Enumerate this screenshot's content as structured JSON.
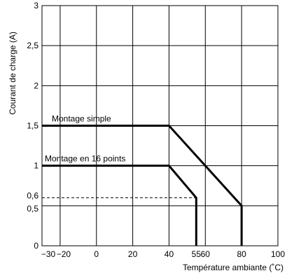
{
  "chart_data": {
    "type": "line",
    "xlabel": "Température ambiante (˚C)",
    "ylabel": "Courant de charge (A)",
    "xlim": [
      -30,
      100
    ],
    "ylim": [
      0,
      3
    ],
    "x_ticks": [
      -30,
      -20,
      0,
      20,
      40,
      55,
      60,
      80,
      100
    ],
    "x_tick_labels": [
      "−30",
      "−20",
      "0",
      "20",
      "40",
      "55",
      "60",
      "80",
      "100"
    ],
    "x_grid": [
      -30,
      -20,
      0,
      20,
      40,
      60,
      80,
      100
    ],
    "y_ticks": [
      0,
      0.5,
      0.6,
      1,
      1.5,
      2,
      2.5,
      3
    ],
    "y_tick_labels": [
      "0",
      "0,5",
      "0,6",
      "1",
      "1,5",
      "2",
      "2,5",
      "3"
    ],
    "y_grid": [
      0,
      0.5,
      1,
      1.5,
      2,
      2.5,
      3
    ],
    "grid": true,
    "reference_line": {
      "y": 0.6,
      "x_from": -30,
      "x_to": 55,
      "style": "dashed"
    },
    "series": [
      {
        "name": "Montage simple",
        "x": [
          -30,
          40,
          80,
          80
        ],
        "y": [
          1.5,
          1.5,
          0.5,
          0
        ]
      },
      {
        "name": "Montage en 16 points",
        "x": [
          -30,
          40,
          55,
          55
        ],
        "y": [
          1,
          1,
          0.6,
          0
        ]
      }
    ]
  }
}
